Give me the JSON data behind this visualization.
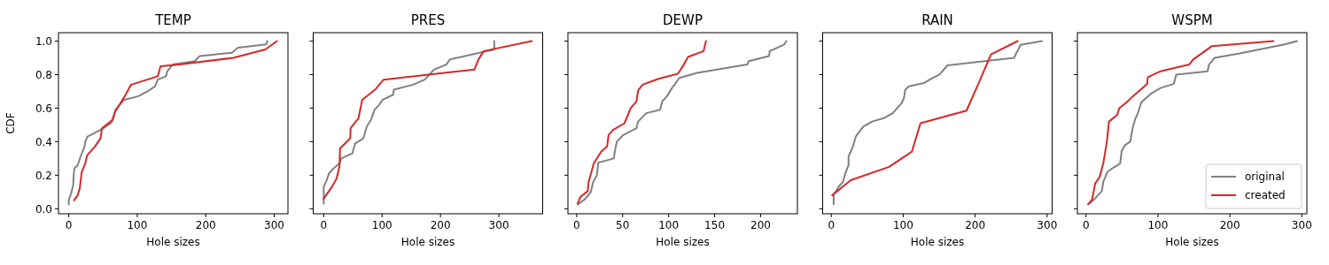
{
  "chart_data": [
    {
      "type": "line",
      "title": "TEMP",
      "xlabel": "Hole sizes",
      "ylabel": "CDF",
      "xlim": [
        -15,
        320
      ],
      "ylim": [
        -0.03,
        1.05
      ],
      "xticks": [
        0,
        100,
        200,
        300
      ],
      "yticks": [
        {
          "value": 0,
          "label": "0.0"
        },
        0.2,
        0.4,
        0.6,
        0.8,
        {
          "value": 1,
          "label": "1.0"
        }
      ],
      "legend": false,
      "series": [
        {
          "color": "#808080",
          "x": [
            0,
            0,
            3.4,
            6.4,
            8,
            13,
            15.5,
            20,
            23,
            24,
            27.5,
            50.7,
            61.5,
            64.5,
            68,
            81,
            101,
            115,
            126,
            130,
            142,
            144,
            151.7,
            184,
            191,
            238,
            247,
            288,
            290
          ],
          "values": [
            0.025,
            0.05,
            0.09,
            0.14,
            0.24,
            0.26,
            0.29,
            0.34,
            0.37,
            0.4,
            0.43,
            0.48,
            0.51,
            0.53,
            0.59,
            0.65,
            0.67,
            0.7,
            0.73,
            0.77,
            0.79,
            0.82,
            0.86,
            0.88,
            0.91,
            0.93,
            0.96,
            0.98,
            1.0
          ]
        },
        {
          "color": "#d62728",
          "x": [
            7.7,
            13,
            16,
            19,
            24,
            27,
            38,
            46.4,
            48.5,
            63.6,
            68,
            83,
            91,
            130,
            134,
            162,
            240,
            287,
            304
          ],
          "values": [
            0.05,
            0.08,
            0.12,
            0.22,
            0.27,
            0.32,
            0.37,
            0.42,
            0.48,
            0.53,
            0.58,
            0.68,
            0.74,
            0.79,
            0.85,
            0.86,
            0.9,
            0.95,
            1.0
          ]
        }
      ]
    },
    {
      "type": "line",
      "title": "PRES",
      "xlabel": "Hole sizes",
      "xlim": [
        -18,
        375
      ],
      "ylim": [
        -0.03,
        1.05
      ],
      "xticks": [
        0,
        100,
        200,
        300
      ],
      "yticks": [
        0,
        0.2,
        0.4,
        0.6,
        0.8,
        1
      ],
      "tick_labels": "x",
      "legend": false,
      "series": [
        {
          "color": "#808080",
          "x": [
            0,
            0,
            5,
            9,
            16.7,
            27,
            30,
            49,
            54,
            68,
            73.7,
            81,
            87,
            95,
            101,
            119,
            120,
            153,
            173,
            189,
            210,
            216,
            292,
            292
          ],
          "values": [
            0.03,
            0.13,
            0.17,
            0.21,
            0.24,
            0.27,
            0.3,
            0.33,
            0.39,
            0.42,
            0.49,
            0.53,
            0.59,
            0.62,
            0.65,
            0.68,
            0.71,
            0.74,
            0.77,
            0.83,
            0.86,
            0.89,
            0.95,
            1.0
          ]
        },
        {
          "color": "#d62728",
          "x": [
            0,
            14,
            22,
            27,
            28,
            45.5,
            46,
            59.6,
            66,
            88,
            102.5,
            258,
            265,
            274,
            356.6
          ],
          "values": [
            0.06,
            0.13,
            0.18,
            0.25,
            0.36,
            0.42,
            0.48,
            0.54,
            0.65,
            0.71,
            0.77,
            0.83,
            0.89,
            0.94,
            1.0
          ]
        }
      ]
    },
    {
      "type": "line",
      "title": "DEWP",
      "xlabel": "Hole sizes",
      "xlim": [
        -9.5,
        240
      ],
      "ylim": [
        -0.03,
        1.05
      ],
      "xticks": [
        0,
        50,
        100,
        150,
        200
      ],
      "yticks": [
        0,
        0.2,
        0.4,
        0.6,
        0.8,
        1
      ],
      "tick_labels": "x",
      "legend": false,
      "series": [
        {
          "color": "#808080",
          "x": [
            1,
            9,
            15.4,
            18,
            22,
            23.5,
            40.4,
            41.7,
            43.7,
            50.7,
            65,
            66.8,
            75.7,
            90.8,
            93,
            98,
            103.7,
            111.7,
            131,
            185.5,
            187,
            209,
            210,
            225.7,
            228
          ],
          "values": [
            0.026,
            0.056,
            0.1,
            0.16,
            0.2,
            0.275,
            0.3,
            0.35,
            0.4,
            0.44,
            0.48,
            0.52,
            0.57,
            0.59,
            0.64,
            0.67,
            0.72,
            0.78,
            0.81,
            0.86,
            0.88,
            0.91,
            0.94,
            0.98,
            1.0
          ]
        },
        {
          "color": "#d62728",
          "x": [
            1,
            4,
            12,
            13,
            18.6,
            26.6,
            33,
            34.7,
            39.5,
            52,
            58.7,
            65,
            66.8,
            71.6,
            89,
            110,
            115,
            121,
            138,
            140.6
          ],
          "values": [
            0.03,
            0.07,
            0.105,
            0.16,
            0.27,
            0.34,
            0.37,
            0.44,
            0.47,
            0.51,
            0.6,
            0.64,
            0.705,
            0.74,
            0.775,
            0.805,
            0.845,
            0.905,
            0.94,
            1.0
          ]
        }
      ]
    },
    {
      "type": "line",
      "title": "RAIN",
      "xlabel": "Hole sizes",
      "xlim": [
        -12,
        307
      ],
      "ylim": [
        -0.03,
        1.05
      ],
      "xticks": [
        0,
        100,
        200,
        300
      ],
      "yticks": [
        0,
        0.2,
        0.4,
        0.6,
        0.8,
        1
      ],
      "tick_labels": "x",
      "legend": false,
      "series": [
        {
          "color": "#808080",
          "x": [
            3.3,
            3.3,
            10.7,
            16.4,
            19,
            24,
            24,
            30,
            34,
            44.4,
            56.7,
            73,
            85.5,
            97.8,
            101,
            102.8,
            108,
            129,
            139,
            150.4,
            161.5,
            213,
            254,
            263,
            293
          ],
          "values": [
            0.026,
            0.08,
            0.135,
            0.16,
            0.205,
            0.26,
            0.31,
            0.37,
            0.43,
            0.49,
            0.52,
            0.54,
            0.57,
            0.63,
            0.66,
            0.71,
            0.73,
            0.75,
            0.775,
            0.8,
            0.855,
            0.88,
            0.9,
            0.977,
            1.0
          ]
        },
        {
          "color": "#d62728",
          "x": [
            1.2,
            27,
            80.5,
            112,
            124,
            188,
            206,
            222,
            259
          ],
          "values": [
            0.08,
            0.17,
            0.25,
            0.34,
            0.51,
            0.585,
            0.76,
            0.92,
            1.0
          ]
        }
      ]
    },
    {
      "type": "line",
      "title": "WSPM",
      "xlabel": "Hole sizes",
      "xlim": [
        -12,
        307
      ],
      "ylim": [
        -0.03,
        1.05
      ],
      "xticks": [
        0,
        100,
        200,
        300
      ],
      "yticks": [
        0,
        0.2,
        0.4,
        0.6,
        0.8,
        1
      ],
      "tick_labels": "x",
      "legend": "bottom right",
      "series": [
        {
          "name": "original",
          "color": "#808080",
          "x": [
            2.5,
            11.5,
            22,
            24,
            30,
            38,
            47.5,
            49.6,
            54.5,
            61.5,
            64.8,
            68,
            72,
            77,
            91.4,
            103.7,
            122,
            125.4,
            169,
            171,
            178.7,
            212,
            276,
            293.4
          ],
          "values": [
            0.026,
            0.056,
            0.105,
            0.16,
            0.22,
            0.245,
            0.27,
            0.345,
            0.38,
            0.4,
            0.48,
            0.53,
            0.57,
            0.635,
            0.69,
            0.72,
            0.745,
            0.8,
            0.82,
            0.86,
            0.9,
            0.925,
            0.98,
            1.0
          ]
        },
        {
          "name": "created",
          "color": "#d62728",
          "x": [
            4,
            8.6,
            12.7,
            19,
            24,
            29,
            32,
            43.4,
            46.3,
            56.6,
            65,
            85,
            86,
            103.7,
            143.4,
            149,
            175,
            260.6
          ],
          "values": [
            0.03,
            0.056,
            0.15,
            0.19,
            0.27,
            0.4,
            0.52,
            0.56,
            0.6,
            0.635,
            0.67,
            0.745,
            0.785,
            0.82,
            0.86,
            0.89,
            0.97,
            1.0
          ]
        }
      ]
    }
  ]
}
